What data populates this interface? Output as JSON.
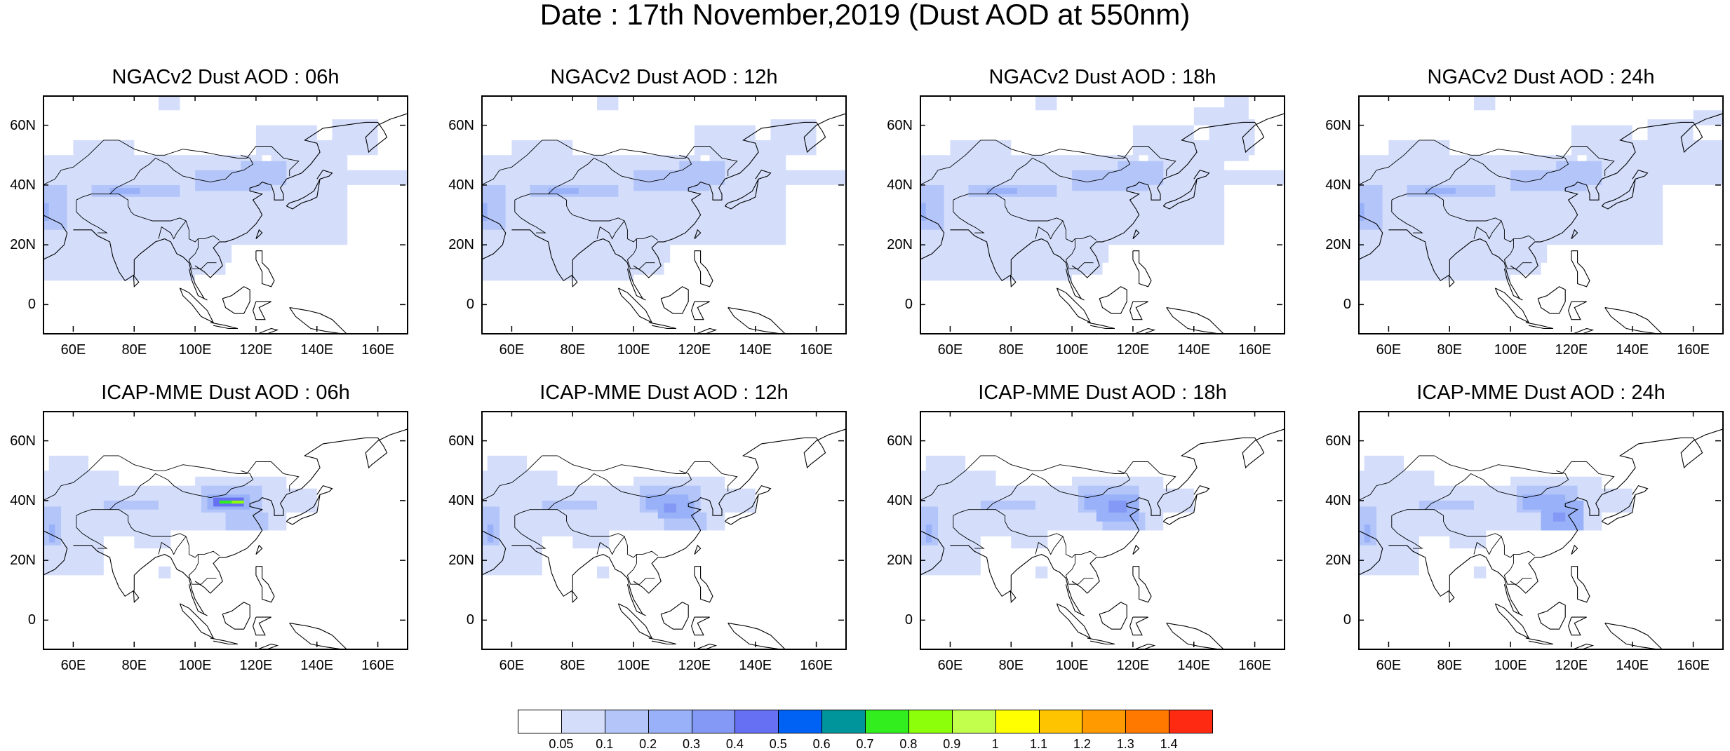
{
  "title": "Date : 17th November,2019 (Dust AOD at 550nm)",
  "panels": [
    {
      "title": "NGACv2 Dust AOD : 06h",
      "model": "NGAC",
      "hour": 6
    },
    {
      "title": "NGACv2 Dust AOD : 12h",
      "model": "NGAC",
      "hour": 12
    },
    {
      "title": "NGACv2 Dust AOD : 18h",
      "model": "NGAC",
      "hour": 18
    },
    {
      "title": "NGACv2 Dust AOD : 24h",
      "model": "NGAC",
      "hour": 24
    },
    {
      "title": "ICAP-MME Dust AOD : 06h",
      "model": "ICAP",
      "hour": 6
    },
    {
      "title": "ICAP-MME Dust AOD : 12h",
      "model": "ICAP",
      "hour": 12
    },
    {
      "title": "ICAP-MME Dust AOD : 18h",
      "model": "ICAP",
      "hour": 18
    },
    {
      "title": "ICAP-MME Dust AOD : 24h",
      "model": "ICAP",
      "hour": 24
    }
  ],
  "map_extent": {
    "lon": [
      50,
      170
    ],
    "lat": [
      -10,
      70
    ]
  },
  "lat_ticks": [
    "60N",
    "40N",
    "20N",
    "0"
  ],
  "lat_tick_values": [
    60,
    40,
    20,
    0
  ],
  "lon_ticks": [
    "60E",
    "80E",
    "100E",
    "120E",
    "140E",
    "160E"
  ],
  "lon_tick_values": [
    60,
    80,
    100,
    120,
    140,
    160
  ],
  "colorbar": {
    "labels": [
      "0.05",
      "0.1",
      "0.2",
      "0.3",
      "0.4",
      "0.5",
      "0.6",
      "0.7",
      "0.8",
      "0.9",
      "1",
      "1.1",
      "1.2",
      "1.3",
      "1.4"
    ],
    "colors": [
      "#ffffff",
      "#d4defb",
      "#b4c6f9",
      "#99b1f8",
      "#8399f5",
      "#6670f2",
      "#0061f5",
      "#00959a",
      "#33ee1f",
      "#8cff0a",
      "#c2ff4d",
      "#ffff00",
      "#ffc400",
      "#ff9a00",
      "#ff7800",
      "#ff2a12"
    ]
  }
}
